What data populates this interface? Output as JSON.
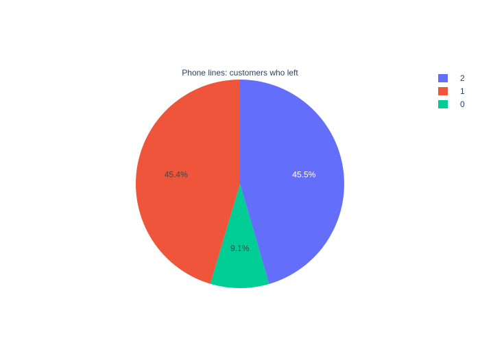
{
  "chart_data": {
    "type": "pie",
    "title": "Phone lines: customers who left",
    "slices": [
      {
        "label": "2",
        "percent": 45.5,
        "text": "45.5%",
        "color": "#636efa",
        "text_color": "#ffffff"
      },
      {
        "label": "0",
        "percent": 9.1,
        "text": "9.1%",
        "color": "#00cc96",
        "text_color": "#444444"
      },
      {
        "label": "1",
        "percent": 45.4,
        "text": "45.4%",
        "color": "#ef553b",
        "text_color": "#444444"
      }
    ],
    "legend": {
      "placement": "top-right",
      "entries": [
        {
          "label": "2",
          "color": "#636efa"
        },
        {
          "label": "1",
          "color": "#ef553b"
        },
        {
          "label": "0",
          "color": "#00cc96"
        }
      ]
    },
    "start_angle_deg": 90,
    "direction": "clockwise"
  }
}
